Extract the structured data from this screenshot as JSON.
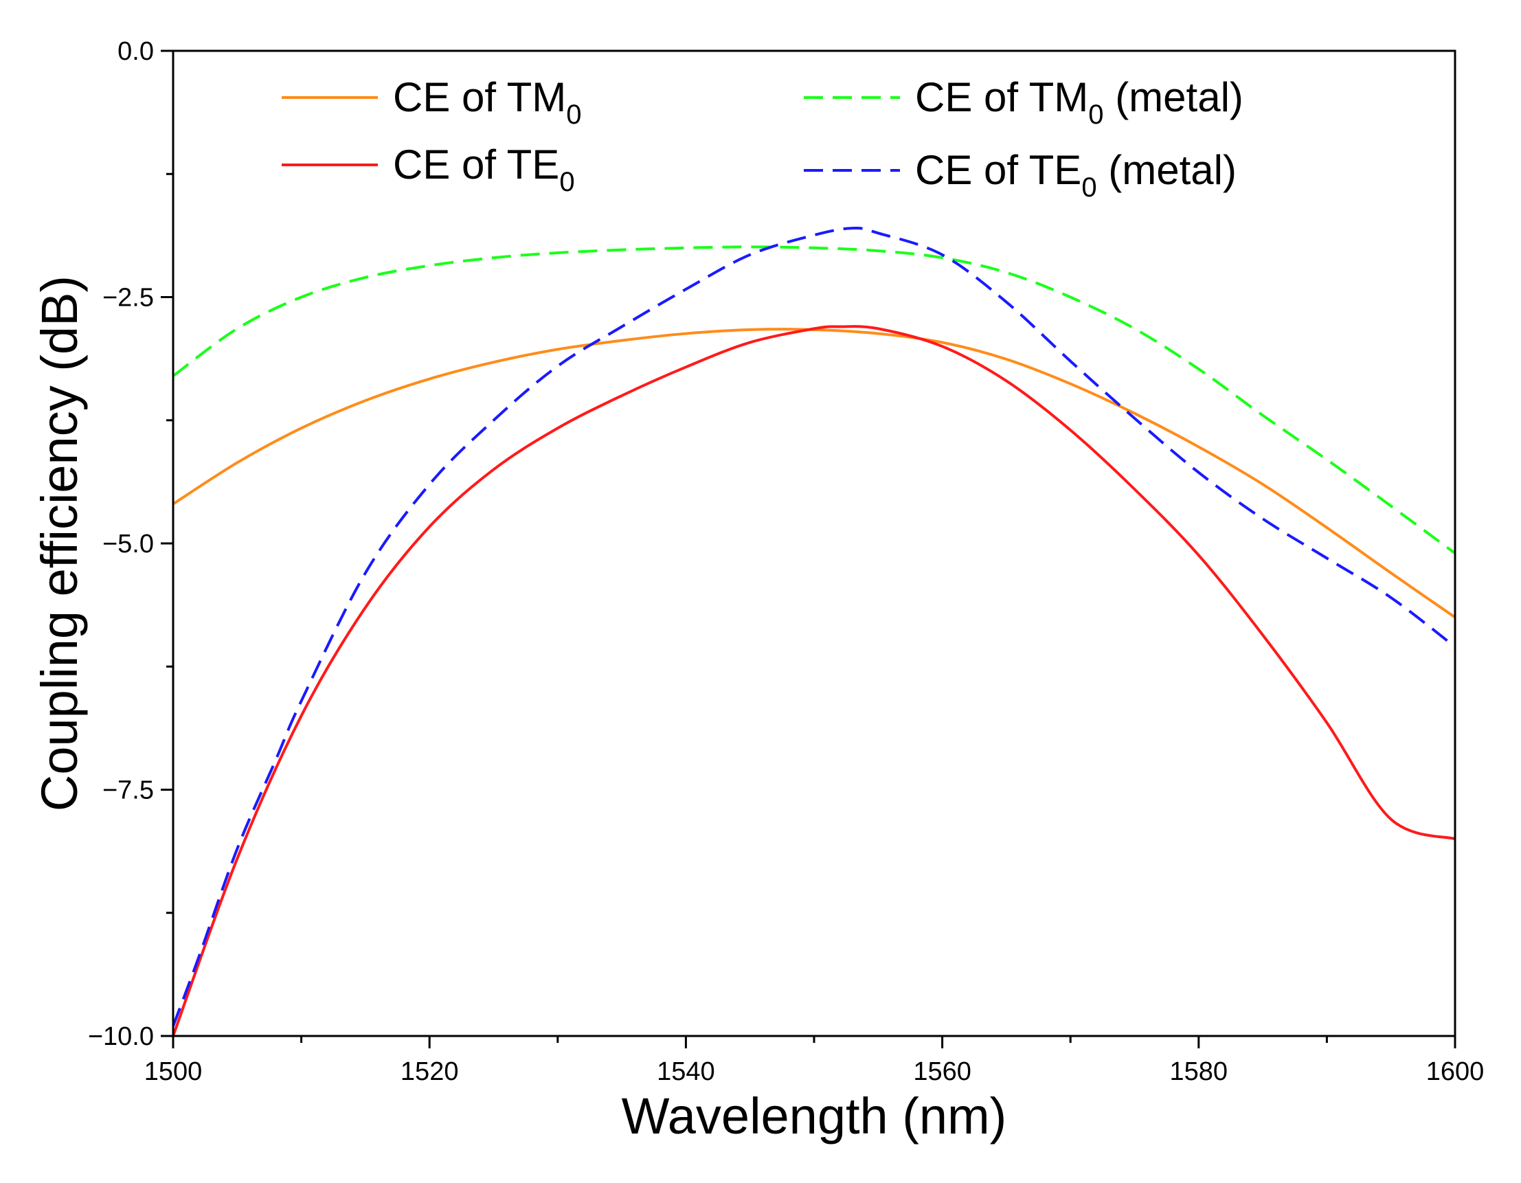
{
  "chart_data": {
    "type": "line",
    "xlabel": "Wavelength (nm)",
    "ylabel": "Coupling efficiency (dB)",
    "xlim": [
      1500,
      1600
    ],
    "ylim": [
      -10,
      0
    ],
    "x_ticks": [
      1500,
      1520,
      1540,
      1560,
      1580,
      1600
    ],
    "x_tick_labels": [
      "1500",
      "1520",
      "1540",
      "1560",
      "1580",
      "1600"
    ],
    "y_ticks": [
      0,
      -2.5,
      -5,
      -7.5,
      -10
    ],
    "y_tick_labels": [
      "0.0",
      "−2.5",
      "−5.0",
      "−7.5",
      "−10.0"
    ],
    "grid": false,
    "legend_position": "top",
    "series": [
      {
        "name": "CE of TM0",
        "label_main": "CE of TM",
        "label_sub": "0",
        "label_suffix": "",
        "color": "#ff8c1a",
        "dash": "solid",
        "x": [
          1500,
          1505,
          1510,
          1515,
          1520,
          1525,
          1530,
          1535,
          1540,
          1545,
          1550,
          1555,
          1560,
          1565,
          1570,
          1575,
          1580,
          1585,
          1590,
          1595,
          1600
        ],
        "y": [
          -4.6,
          -4.18,
          -3.83,
          -3.55,
          -3.33,
          -3.16,
          -3.03,
          -2.94,
          -2.87,
          -2.83,
          -2.83,
          -2.87,
          -2.96,
          -3.13,
          -3.38,
          -3.68,
          -4.02,
          -4.4,
          -4.84,
          -5.3,
          -5.75
        ]
      },
      {
        "name": "CE of TE0",
        "label_main": "CE of TE",
        "label_sub": "0",
        "label_suffix": "",
        "color": "#ff1a1a",
        "dash": "solid",
        "x": [
          1500,
          1505,
          1510,
          1515,
          1520,
          1525,
          1530,
          1535,
          1540,
          1545,
          1550,
          1552,
          1555,
          1560,
          1565,
          1570,
          1575,
          1580,
          1585,
          1590,
          1595,
          1600
        ],
        "y": [
          -10.0,
          -8.2,
          -6.75,
          -5.65,
          -4.83,
          -4.25,
          -3.83,
          -3.5,
          -3.21,
          -2.96,
          -2.82,
          -2.8,
          -2.82,
          -3.0,
          -3.35,
          -3.85,
          -4.45,
          -5.12,
          -5.93,
          -6.82,
          -7.8,
          -8.0
        ]
      },
      {
        "name": "CE of TM0 (metal)",
        "label_main": "CE of TM",
        "label_sub": "0",
        "label_suffix": " (metal)",
        "color": "#1aff1a",
        "dash": "dashed",
        "x": [
          1500,
          1505,
          1510,
          1515,
          1520,
          1525,
          1530,
          1535,
          1540,
          1545,
          1550,
          1555,
          1560,
          1565,
          1570,
          1575,
          1580,
          1585,
          1590,
          1595,
          1600
        ],
        "y": [
          -3.3,
          -2.82,
          -2.5,
          -2.3,
          -2.18,
          -2.1,
          -2.05,
          -2.02,
          -2.0,
          -1.99,
          -2.0,
          -2.03,
          -2.1,
          -2.25,
          -2.5,
          -2.82,
          -3.23,
          -3.7,
          -4.15,
          -4.62,
          -5.1
        ]
      },
      {
        "name": "CE of TE0 (metal)",
        "label_main": "CE of TE",
        "label_sub": "0",
        "label_suffix": " (metal)",
        "color": "#1a1aff",
        "dash": "dashed",
        "x": [
          1500,
          1502,
          1505,
          1508,
          1510,
          1515,
          1520,
          1525,
          1530,
          1535,
          1540,
          1545,
          1550,
          1553,
          1555,
          1560,
          1565,
          1570,
          1575,
          1580,
          1585,
          1590,
          1595,
          1600
        ],
        "y": [
          -9.9,
          -9.2,
          -8.1,
          -7.2,
          -6.6,
          -5.3,
          -4.4,
          -3.75,
          -3.2,
          -2.8,
          -2.42,
          -2.07,
          -1.87,
          -1.8,
          -1.85,
          -2.07,
          -2.55,
          -3.15,
          -3.73,
          -4.28,
          -4.75,
          -5.15,
          -5.55,
          -6.05
        ]
      }
    ]
  }
}
